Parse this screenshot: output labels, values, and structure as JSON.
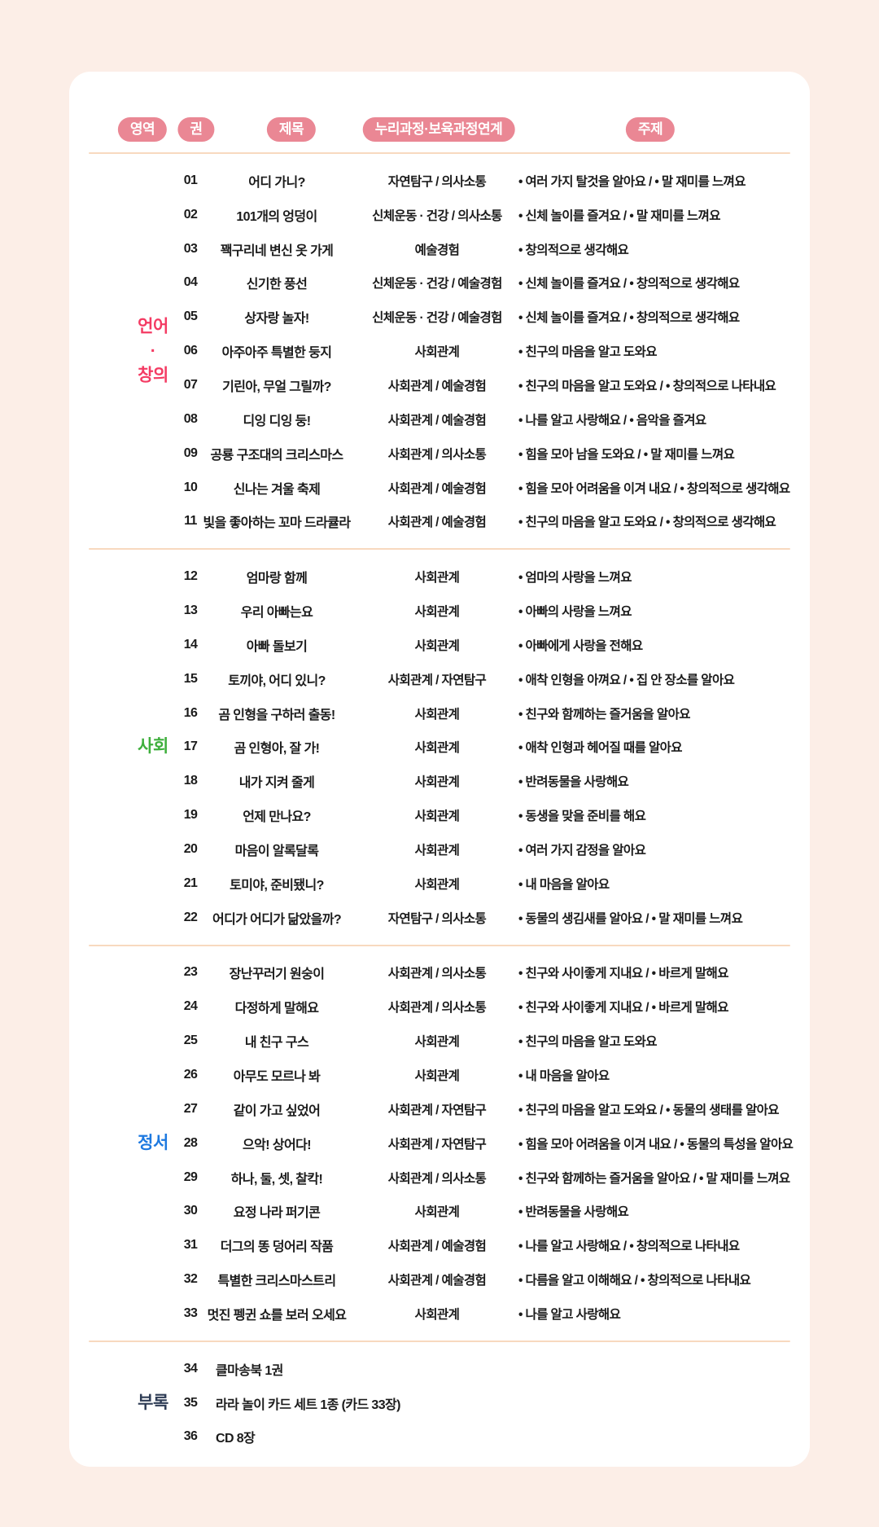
{
  "colors": {
    "page_bg": "#fceee7",
    "card_bg": "#ffffff",
    "badge_bg": "#ea8794",
    "divider": "#f8d9bf",
    "text": "#1b1b1b",
    "area_language": "#f43b63",
    "area_social": "#3faf3d",
    "area_emotion": "#1d79e0",
    "area_appendix": "#2e3c55"
  },
  "header": {
    "columns": [
      {
        "label": "영역"
      },
      {
        "label": "권"
      },
      {
        "label": "제목"
      },
      {
        "label": "누리과정·보육과정연계"
      },
      {
        "label": "주제"
      }
    ]
  },
  "groups": [
    {
      "area": {
        "lines": [
          "언어",
          "·",
          "창의"
        ],
        "color": "#f43b63"
      },
      "appendix": false,
      "rows": [
        {
          "no": "01",
          "title": "어디 가니?",
          "curriculum": "자연탐구 / 의사소통",
          "theme": "• 여러 가지 탈것을 알아요 / • 말 재미를 느껴요"
        },
        {
          "no": "02",
          "title": "101개의 엉덩이",
          "curriculum": "신체운동 · 건강 / 의사소통",
          "theme": "• 신체 놀이를 즐겨요 / • 말 재미를 느껴요"
        },
        {
          "no": "03",
          "title": "꽥구리네 변신 옷 가게",
          "curriculum": "예술경험",
          "theme": "• 창의적으로 생각해요"
        },
        {
          "no": "04",
          "title": "신기한 풍선",
          "curriculum": "신체운동 · 건강 / 예술경험",
          "theme": "• 신체 놀이를 즐겨요 / • 창의적으로 생각해요"
        },
        {
          "no": "05",
          "title": "상자랑 놀자!",
          "curriculum": "신체운동 · 건강 / 예술경험",
          "theme": "• 신체 놀이를 즐겨요 / • 창의적으로 생각해요"
        },
        {
          "no": "06",
          "title": "아주아주 특별한 둥지",
          "curriculum": "사회관계",
          "theme": "• 친구의 마음을 알고 도와요"
        },
        {
          "no": "07",
          "title": "기린아, 무얼 그릴까?",
          "curriculum": "사회관계 / 예술경험",
          "theme": "• 친구의 마음을 알고 도와요 / • 창의적으로 나타내요"
        },
        {
          "no": "08",
          "title": "디잉 디잉 둥!",
          "curriculum": "사회관계 / 예술경험",
          "theme": "• 나를 알고 사랑해요 / • 음악을 즐겨요"
        },
        {
          "no": "09",
          "title": "공룡 구조대의 크리스마스",
          "curriculum": "사회관계 / 의사소통",
          "theme": "• 힘을 모아 남을 도와요 / • 말 재미를 느껴요"
        },
        {
          "no": "10",
          "title": "신나는 겨울 축제",
          "curriculum": "사회관계 / 예술경험",
          "theme": "• 힘을 모아 어려움을 이겨 내요 / • 창의적으로 생각해요"
        },
        {
          "no": "11",
          "title": "빛을 좋아하는 꼬마 드라큘라",
          "curriculum": "사회관계 / 예술경험",
          "theme": "• 친구의 마음을 알고 도와요 / • 창의적으로 생각해요"
        }
      ]
    },
    {
      "area": {
        "lines": [
          "사회"
        ],
        "color": "#3faf3d"
      },
      "appendix": false,
      "rows": [
        {
          "no": "12",
          "title": "엄마랑 함께",
          "curriculum": "사회관계",
          "theme": "• 엄마의 사랑을 느껴요"
        },
        {
          "no": "13",
          "title": "우리 아빠는요",
          "curriculum": "사회관계",
          "theme": "• 아빠의 사랑을 느껴요"
        },
        {
          "no": "14",
          "title": "아빠 돌보기",
          "curriculum": "사회관계",
          "theme": "• 아빠에게 사랑을 전해요"
        },
        {
          "no": "15",
          "title": "토끼야, 어디 있니?",
          "curriculum": "사회관계 / 자연탐구",
          "theme": "• 애착 인형을 아껴요 / • 집 안 장소를 알아요"
        },
        {
          "no": "16",
          "title": "곰 인형을 구하러 출동!",
          "curriculum": "사회관계",
          "theme": "• 친구와 함께하는 즐거움을 알아요"
        },
        {
          "no": "17",
          "title": "곰 인형아, 잘 가!",
          "curriculum": "사회관계",
          "theme": "• 애착 인형과 헤어질 때를 알아요"
        },
        {
          "no": "18",
          "title": "내가 지켜 줄게",
          "curriculum": "사회관계",
          "theme": "• 반려동물을 사랑해요"
        },
        {
          "no": "19",
          "title": "언제 만나요?",
          "curriculum": "사회관계",
          "theme": "• 동생을 맞을 준비를 해요"
        },
        {
          "no": "20",
          "title": "마음이 알록달록",
          "curriculum": "사회관계",
          "theme": "• 여러 가지 감정을 알아요"
        },
        {
          "no": "21",
          "title": "토미야, 준비됐니?",
          "curriculum": "사회관계",
          "theme": "• 내 마음을 알아요"
        },
        {
          "no": "22",
          "title": "어디가 어디가 닮았을까?",
          "curriculum": "자연탐구 / 의사소통",
          "theme": "• 동물의 생김새를 알아요 / • 말 재미를 느껴요"
        }
      ]
    },
    {
      "area": {
        "lines": [
          "정서"
        ],
        "color": "#1d79e0"
      },
      "appendix": false,
      "rows": [
        {
          "no": "23",
          "title": "장난꾸러기 원숭이",
          "curriculum": "사회관계 / 의사소통",
          "theme": "• 친구와 사이좋게 지내요 / • 바르게 말해요"
        },
        {
          "no": "24",
          "title": "다정하게 말해요",
          "curriculum": "사회관계 / 의사소통",
          "theme": "• 친구와 사이좋게 지내요 / • 바르게 말해요"
        },
        {
          "no": "25",
          "title": "내 친구 구스",
          "curriculum": "사회관계",
          "theme": "• 친구의 마음을 알고 도와요"
        },
        {
          "no": "26",
          "title": "아무도 모르나 봐",
          "curriculum": "사회관계",
          "theme": "• 내 마음을 알아요"
        },
        {
          "no": "27",
          "title": "같이 가고 싶었어",
          "curriculum": "사회관계 / 자연탐구",
          "theme": "• 친구의 마음을 알고 도와요 / • 동물의 생태를 알아요"
        },
        {
          "no": "28",
          "title": "으악! 상어다!",
          "curriculum": "사회관계 / 자연탐구",
          "theme": "• 힘을 모아 어려움을 이겨 내요 / • 동물의 특성을 알아요"
        },
        {
          "no": "29",
          "title": "하나, 둘, 셋, 찰칵!",
          "curriculum": "사회관계 / 의사소통",
          "theme": "• 친구와 함께하는 즐거움을 알아요 / • 말 재미를 느껴요"
        },
        {
          "no": "30",
          "title": "요정 나라 퍼기콘",
          "curriculum": "사회관계",
          "theme": "• 반려동물을 사랑해요"
        },
        {
          "no": "31",
          "title": "더그의 똥 덩어리 작품",
          "curriculum": "사회관계 / 예술경험",
          "theme": "• 나를 알고 사랑해요 / • 창의적으로 나타내요"
        },
        {
          "no": "32",
          "title": "특별한 크리스마스트리",
          "curriculum": "사회관계 / 예술경험",
          "theme": "• 다름을 알고 이해해요 / • 창의적으로 나타내요"
        },
        {
          "no": "33",
          "title": "멋진 펭귄 쇼를 보러 오세요",
          "curriculum": "사회관계",
          "theme": "• 나를 알고 사랑해요"
        }
      ]
    },
    {
      "area": {
        "lines": [
          "부록"
        ],
        "color": "#2e3c55"
      },
      "appendix": true,
      "rows": [
        {
          "no": "34",
          "title": "클마송북 1권",
          "curriculum": "",
          "theme": ""
        },
        {
          "no": "35",
          "title": "라라 놀이 카드 세트 1종 (카드 33장)",
          "curriculum": "",
          "theme": ""
        },
        {
          "no": "36",
          "title": "CD 8장",
          "curriculum": "",
          "theme": ""
        }
      ]
    }
  ]
}
